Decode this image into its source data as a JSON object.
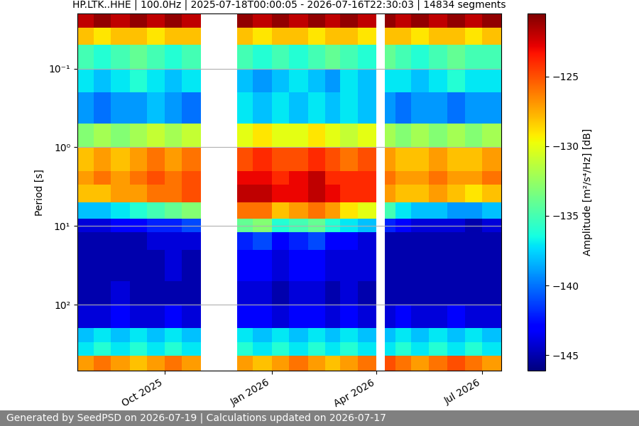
{
  "chart_data": {
    "type": "heatmap",
    "title": "HP.LTK..HHE | 100.0Hz | 2025-07-18T00:00:05 - 2026-07-16T22:30:03 | 14834 segments",
    "ylabel": "Period [s]",
    "footer": "Generated by SeedPSD on 2026-07-19 | Calculations updated on 2026-07-17",
    "log": "y",
    "grid": true,
    "color": "jet",
    "xlim": [
      "2025-07-18T00:00:05",
      "2026-07-16T22:30:03"
    ],
    "ylim": [
      690,
      0.02
    ],
    "xticks": [
      {
        "value": "2025-10-01",
        "label": "Oct 2025"
      },
      {
        "value": "2026-01-01",
        "label": "Jan 2026"
      },
      {
        "value": "2026-04-01",
        "label": "Apr 2026"
      },
      {
        "value": "2026-07-01",
        "label": "Jul 2026"
      }
    ],
    "yticks": [
      {
        "value": 0.1,
        "label": "10⁻¹"
      },
      {
        "value": 1,
        "label": "10⁰"
      },
      {
        "value": 10,
        "label": "10¹"
      },
      {
        "value": 100,
        "label": "10²"
      }
    ],
    "x_edges": [
      "2025-07-18T00:00:05",
      "2025-08-01",
      "2025-08-16",
      "2025-09-01",
      "2025-09-16",
      "2025-10-01",
      "2025-10-16",
      "2025-11-01",
      "2025-12-02",
      "2025-12-16",
      "2026-01-01",
      "2026-01-16",
      "2026-02-01",
      "2026-02-16",
      "2026-03-01",
      "2026-03-16",
      "2026-04-01",
      "2026-04-08",
      "2026-04-17",
      "2026-05-01",
      "2026-05-16",
      "2026-06-01",
      "2026-06-16",
      "2026-07-01",
      "2026-07-16T22:30:03"
    ],
    "y_edges": [
      0.02,
      0.03,
      0.05,
      0.1,
      0.2,
      0.5,
      1,
      2,
      3,
      5,
      8,
      12,
      20,
      50,
      100,
      200,
      300,
      450,
      690
    ],
    "cells": [
      [
        -122,
        -121,
        -122,
        -121,
        -122,
        -121,
        -122,
        null,
        -121,
        -122,
        -121,
        -122,
        -121,
        -122,
        -121,
        -122,
        null,
        -121,
        -122,
        -121,
        -122,
        -121,
        -122,
        -121
      ],
      [
        -128,
        -129,
        -128,
        -128,
        -129,
        -128,
        -128,
        null,
        -128,
        -129,
        -128,
        -128,
        -129,
        -128,
        -128,
        -129,
        null,
        -128,
        -128,
        -129,
        -128,
        -128,
        -129,
        -128
      ],
      [
        -135,
        -136,
        -135,
        -134,
        -135,
        -136,
        -135,
        null,
        -135,
        -136,
        -135,
        -136,
        -135,
        -134,
        -135,
        -136,
        null,
        -134,
        -135,
        -136,
        -135,
        -134,
        -135,
        -135
      ],
      [
        -137,
        -138,
        -137,
        -136,
        -137,
        -138,
        -137,
        null,
        -138,
        -139,
        -138,
        -137,
        -138,
        -139,
        -137,
        -138,
        null,
        -137,
        -137,
        -138,
        -137,
        -136,
        -137,
        -137
      ],
      [
        -139,
        -140,
        -139,
        -139,
        -138,
        -139,
        -140,
        null,
        -137,
        -138,
        -137,
        -138,
        -137,
        -138,
        -137,
        -138,
        null,
        -139,
        -140,
        -139,
        -139,
        -140,
        -139,
        -139
      ],
      [
        -133,
        -132,
        -133,
        -132,
        -131,
        -132,
        -131,
        null,
        -130,
        -129,
        -130,
        -130,
        -129,
        -130,
        -131,
        -130,
        null,
        -132,
        -133,
        -132,
        -133,
        -132,
        -133,
        -132
      ],
      [
        -128,
        -127,
        -128,
        -127,
        -126,
        -127,
        -126,
        null,
        -125,
        -124,
        -125,
        -125,
        -124,
        -125,
        -126,
        -125,
        null,
        -127,
        -128,
        -128,
        -127,
        -128,
        -128,
        -127
      ],
      [
        -127,
        -126,
        -127,
        -126,
        -125,
        -126,
        -125,
        null,
        -123,
        -123,
        -124,
        -123,
        -122,
        -124,
        -124,
        -124,
        null,
        -126,
        -127,
        -127,
        -126,
        -127,
        -127,
        -126
      ],
      [
        -128,
        -128,
        -127,
        -127,
        -126,
        -126,
        -125,
        null,
        -122,
        -122,
        -123,
        -123,
        -122,
        -123,
        -124,
        -124,
        null,
        -127,
        -128,
        -128,
        -127,
        -128,
        -129,
        -128
      ],
      [
        -138,
        -138,
        -137,
        -136,
        -135,
        -134,
        -133,
        null,
        -126,
        -126,
        -128,
        -127,
        -126,
        -127,
        -129,
        -130,
        null,
        -135,
        -137,
        -138,
        -138,
        -139,
        -139,
        -138
      ],
      [
        -144,
        -144,
        -143,
        -143,
        -142,
        -142,
        -141,
        null,
        -134,
        -133,
        -136,
        -135,
        -134,
        -136,
        -137,
        -138,
        null,
        -142,
        -143,
        -144,
        -144,
        -144,
        -145,
        -144
      ],
      [
        -145,
        -145,
        -145,
        -145,
        -144,
        -144,
        -144,
        null,
        -142,
        -141,
        -143,
        -142,
        -141,
        -143,
        -143,
        -144,
        null,
        -145,
        -145,
        -145,
        -145,
        -145,
        -145,
        -145
      ],
      [
        -145,
        -145,
        -145,
        -145,
        -145,
        -144,
        -145,
        null,
        -143,
        -143,
        -144,
        -143,
        -143,
        -144,
        -144,
        -144,
        null,
        -145,
        -145,
        -145,
        -145,
        -145,
        -145,
        -145
      ],
      [
        -145,
        -145,
        -144,
        -145,
        -145,
        -145,
        -145,
        null,
        -144,
        -144,
        -145,
        -144,
        -144,
        -145,
        -144,
        -145,
        null,
        -145,
        -145,
        -145,
        -145,
        -145,
        -145,
        -145
      ],
      [
        -144,
        -144,
        -143,
        -144,
        -144,
        -143,
        -144,
        null,
        -143,
        -143,
        -144,
        -143,
        -143,
        -144,
        -143,
        -144,
        null,
        -144,
        -143,
        -144,
        -144,
        -143,
        -144,
        -144
      ],
      [
        -138,
        -137,
        -138,
        -137,
        -138,
        -137,
        -138,
        null,
        -137,
        -138,
        -137,
        -138,
        -137,
        -138,
        -137,
        -138,
        null,
        -138,
        -137,
        -138,
        -137,
        -138,
        -137,
        -138
      ],
      [
        -137,
        -136,
        -137,
        -136,
        -137,
        -136,
        -137,
        null,
        -136,
        -137,
        -136,
        -137,
        -136,
        -137,
        -136,
        -137,
        null,
        -137,
        -136,
        -137,
        -136,
        -137,
        -136,
        -137
      ],
      [
        -127,
        -126,
        -127,
        -128,
        -127,
        -126,
        -127,
        null,
        -127,
        -128,
        -127,
        -126,
        -127,
        -128,
        -127,
        -126,
        null,
        -125,
        -126,
        -127,
        -126,
        -125,
        -126,
        -127
      ]
    ],
    "colorbar": {
      "label": "Amplitude [m²/s⁴/Hz] [dB]",
      "range": [
        -146.1,
        -120.5
      ],
      "ticks": [
        {
          "value": -145,
          "label": "−145"
        },
        {
          "value": -140,
          "label": "−140"
        },
        {
          "value": -135,
          "label": "−135"
        },
        {
          "value": -130,
          "label": "−130"
        },
        {
          "value": -125,
          "label": "−125"
        }
      ]
    }
  }
}
